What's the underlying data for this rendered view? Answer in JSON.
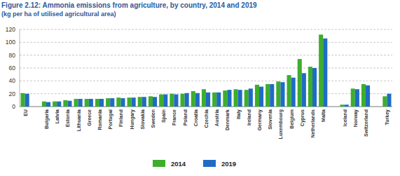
{
  "chart_data": {
    "type": "bar",
    "title": "Figure 2.12: Ammonia emissions from agriculture, by country, 2014 and 2019",
    "subtitle": "(kg per ha of utilised agricultural area)",
    "categories": [
      "EU",
      null,
      "Bulgaria",
      "Latvia",
      "Estonia",
      "Lithuania",
      "Greece",
      "Romania",
      "Portugal",
      "Finland",
      "Hungary",
      "Slovakia",
      "Sweden",
      "Spain",
      "France",
      "Poland",
      "Croatia",
      "Czechia",
      "Austria",
      "Denmark",
      "Italy",
      "Ireland",
      "Germany",
      "Slovenia",
      "Luxembourg",
      "Belgium",
      "Cyprus",
      "Netherlands",
      "Malta",
      null,
      "Iceland",
      "Norway",
      "Switzerland",
      null,
      "Turkey"
    ],
    "series": [
      {
        "name": "2014",
        "color": "#3dae2b",
        "values": [
          21,
          null,
          8,
          8,
          10,
          12,
          12,
          12,
          13,
          14,
          14,
          15,
          16,
          19,
          20,
          20,
          24,
          27,
          22,
          25,
          27,
          26,
          34,
          35,
          39,
          49,
          74,
          62,
          112,
          null,
          3,
          28,
          35,
          null,
          16
        ]
      },
      {
        "name": "2019",
        "color": "#1f6cc4",
        "values": [
          20,
          null,
          7,
          8,
          9,
          12,
          12,
          12,
          13,
          13,
          14,
          15,
          15,
          19,
          19,
          21,
          21,
          22,
          22,
          26,
          26,
          28,
          31,
          35,
          38,
          45,
          52,
          60,
          106,
          null,
          3,
          27,
          33,
          null,
          20
        ]
      }
    ],
    "ylim": [
      0,
      120
    ],
    "yticks": [
      0,
      20,
      40,
      60,
      80,
      100,
      120
    ],
    "grid": true,
    "legend": "bottom"
  }
}
